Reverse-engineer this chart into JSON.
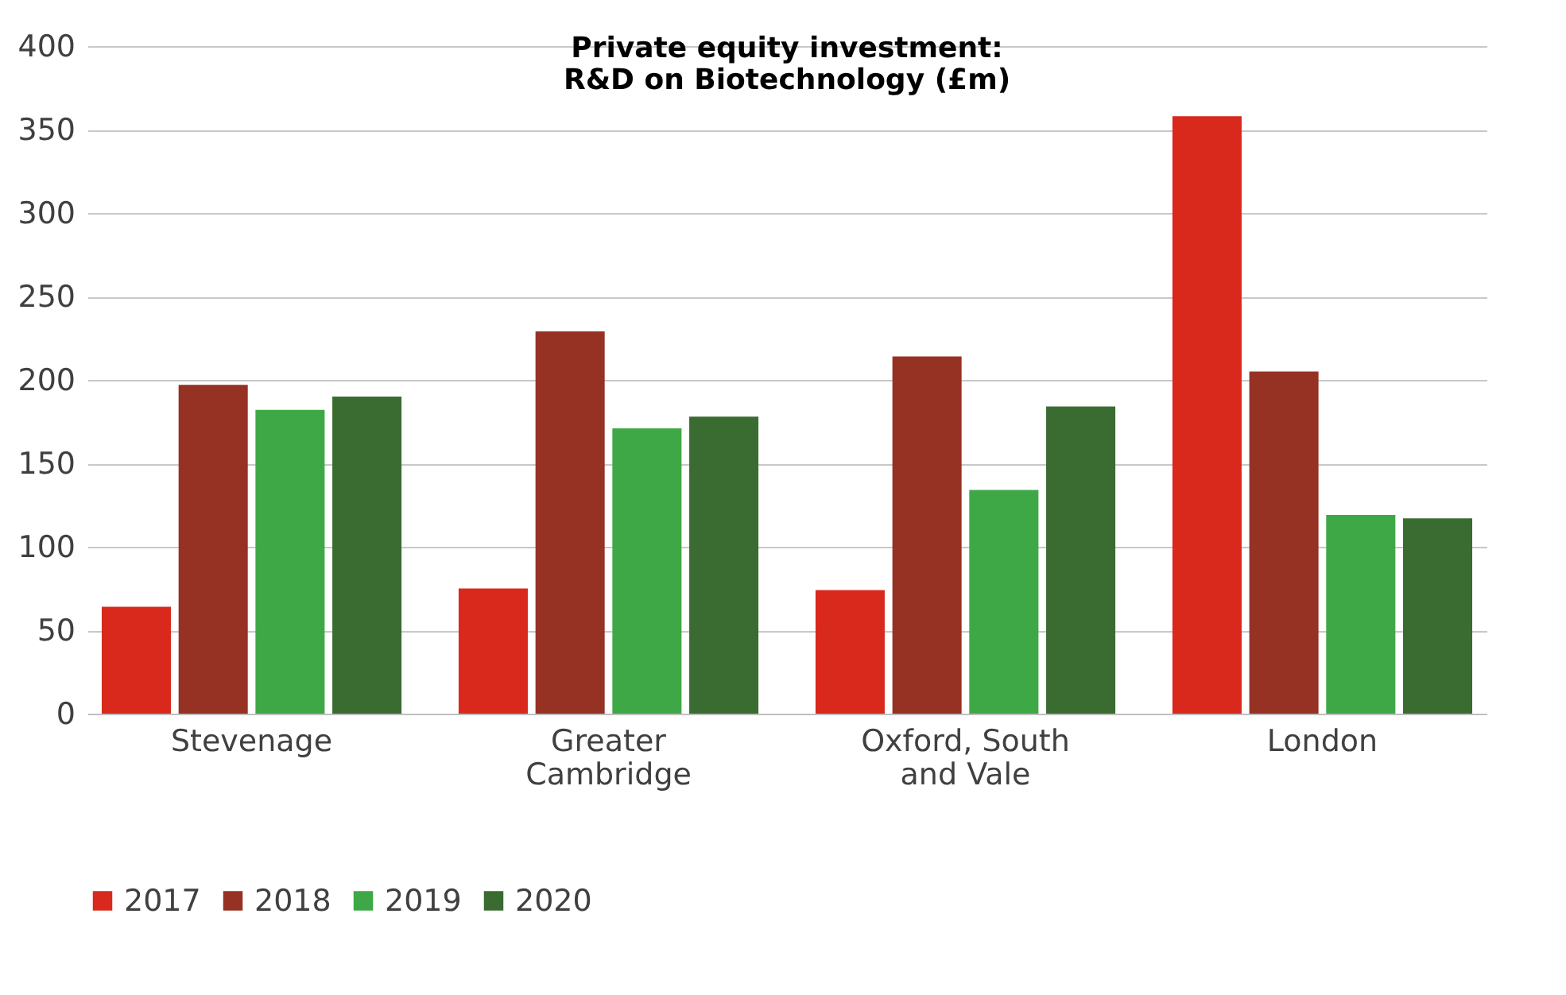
{
  "chart_data": {
    "type": "bar",
    "title": "Private equity investment: R&D on Biotechnology (£m)",
    "categories": [
      "Stevenage",
      "Greater Cambridge",
      "Oxford, South and Vale",
      "London"
    ],
    "series": [
      {
        "name": "2017",
        "color": "#d9291c",
        "values": [
          64,
          75,
          74,
          358
        ]
      },
      {
        "name": "2018",
        "color": "#953224",
        "values": [
          197,
          229,
          214,
          205
        ]
      },
      {
        "name": "2019",
        "color": "#3fa846",
        "values": [
          182,
          171,
          134,
          119
        ]
      },
      {
        "name": "2020",
        "color": "#3a6b30",
        "values": [
          190,
          178,
          184,
          117
        ]
      }
    ],
    "ylim": [
      0,
      400
    ],
    "yticks": [
      0,
      50,
      100,
      150,
      200,
      250,
      300,
      350,
      400
    ],
    "grid": "y",
    "legend": "bottom"
  }
}
